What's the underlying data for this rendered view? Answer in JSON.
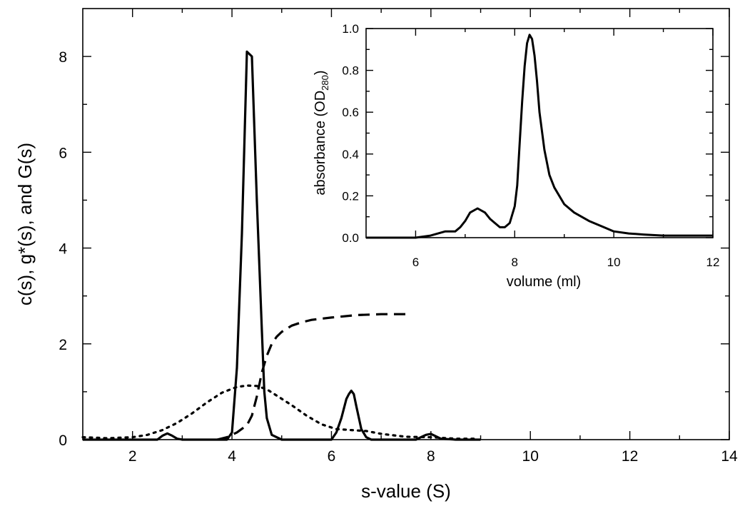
{
  "chart_data": [
    {
      "type": "line",
      "title": "",
      "xlabel": "s-value (S)",
      "ylabel": "c(s), g*(s), and G(s)",
      "xlim": [
        1,
        14
      ],
      "ylim": [
        0,
        9
      ],
      "xticks": [
        2,
        4,
        6,
        8,
        10,
        12,
        14
      ],
      "yticks": [
        0,
        2,
        4,
        6,
        8
      ],
      "grid": false,
      "legend": "none",
      "series": [
        {
          "style": "solid",
          "color": "#000000",
          "x": [
            1.0,
            2.5,
            2.6,
            2.7,
            2.8,
            2.9,
            3.0,
            3.5,
            3.9,
            4.0,
            4.1,
            4.2,
            4.3,
            4.4,
            4.5,
            4.6,
            4.65,
            4.7,
            4.8,
            5.0,
            6.0,
            6.1,
            6.2,
            6.3,
            6.35,
            6.4,
            6.45,
            6.5,
            6.6,
            6.7,
            6.8,
            7.0,
            7.7,
            7.8,
            7.9,
            8.0,
            8.1,
            8.2,
            8.5,
            9.0
          ],
          "y": [
            0.0,
            0.0,
            0.08,
            0.13,
            0.08,
            0.02,
            0.0,
            0.0,
            0.0,
            0.15,
            1.5,
            4.3,
            8.1,
            8.0,
            5.0,
            2.3,
            1.0,
            0.45,
            0.1,
            0.0,
            0.0,
            0.15,
            0.45,
            0.85,
            0.95,
            1.02,
            0.95,
            0.7,
            0.22,
            0.05,
            0.0,
            0.0,
            0.0,
            0.05,
            0.1,
            0.12,
            0.07,
            0.02,
            0.0,
            0.0
          ]
        },
        {
          "style": "dashed",
          "color": "#000000",
          "x": [
            3.7,
            3.9,
            4.1,
            4.3,
            4.4,
            4.5,
            4.6,
            4.7,
            4.8,
            4.9,
            5.0,
            5.2,
            5.4,
            5.6,
            6.0,
            6.5,
            7.0,
            7.5
          ],
          "y": [
            0.0,
            0.05,
            0.15,
            0.3,
            0.5,
            0.9,
            1.4,
            1.75,
            2.0,
            2.15,
            2.25,
            2.38,
            2.45,
            2.5,
            2.55,
            2.6,
            2.62,
            2.62
          ]
        },
        {
          "style": "dotted",
          "color": "#000000",
          "x": [
            1.0,
            1.5,
            2.0,
            2.3,
            2.6,
            2.9,
            3.2,
            3.5,
            3.8,
            4.1,
            4.3,
            4.5,
            4.7,
            4.9,
            5.2,
            5.5,
            5.8,
            6.1,
            6.4,
            6.7,
            7.0,
            7.5,
            8.0,
            8.5,
            8.9
          ],
          "y": [
            0.05,
            0.03,
            0.05,
            0.1,
            0.2,
            0.35,
            0.55,
            0.78,
            0.98,
            1.1,
            1.13,
            1.12,
            1.05,
            0.92,
            0.72,
            0.5,
            0.32,
            0.22,
            0.2,
            0.18,
            0.12,
            0.06,
            0.05,
            0.02,
            0.02
          ]
        }
      ]
    },
    {
      "type": "line",
      "title": "",
      "xlabel": "volume (ml)",
      "ylabel": "absorbance (OD",
      "ylabel_subscript": "280",
      "ylabel_suffix": ")",
      "xlim": [
        5,
        12
      ],
      "ylim": [
        0,
        1.0
      ],
      "xticks": [
        6,
        8,
        10,
        12
      ],
      "yticks": [
        0.0,
        0.2,
        0.4,
        0.6,
        0.8,
        1.0
      ],
      "ytick_labels": [
        "0.0",
        "0.2",
        "0.4",
        "0.6",
        "0.8",
        "1.0"
      ],
      "grid": false,
      "legend": "none",
      "series": [
        {
          "style": "solid",
          "color": "#000000",
          "x": [
            5.0,
            6.0,
            6.3,
            6.6,
            6.8,
            6.9,
            7.0,
            7.1,
            7.25,
            7.4,
            7.5,
            7.6,
            7.7,
            7.8,
            7.9,
            8.0,
            8.05,
            8.1,
            8.15,
            8.2,
            8.25,
            8.3,
            8.35,
            8.4,
            8.45,
            8.5,
            8.6,
            8.7,
            8.8,
            9.0,
            9.2,
            9.5,
            9.8,
            10.0,
            10.3,
            10.6,
            11.0,
            11.5,
            12.0
          ],
          "y": [
            0.0,
            0.0,
            0.01,
            0.03,
            0.03,
            0.05,
            0.08,
            0.12,
            0.14,
            0.12,
            0.09,
            0.07,
            0.05,
            0.05,
            0.07,
            0.15,
            0.25,
            0.45,
            0.65,
            0.82,
            0.93,
            0.97,
            0.95,
            0.87,
            0.75,
            0.6,
            0.42,
            0.3,
            0.24,
            0.16,
            0.12,
            0.08,
            0.05,
            0.03,
            0.02,
            0.015,
            0.01,
            0.01,
            0.01
          ]
        }
      ]
    }
  ]
}
